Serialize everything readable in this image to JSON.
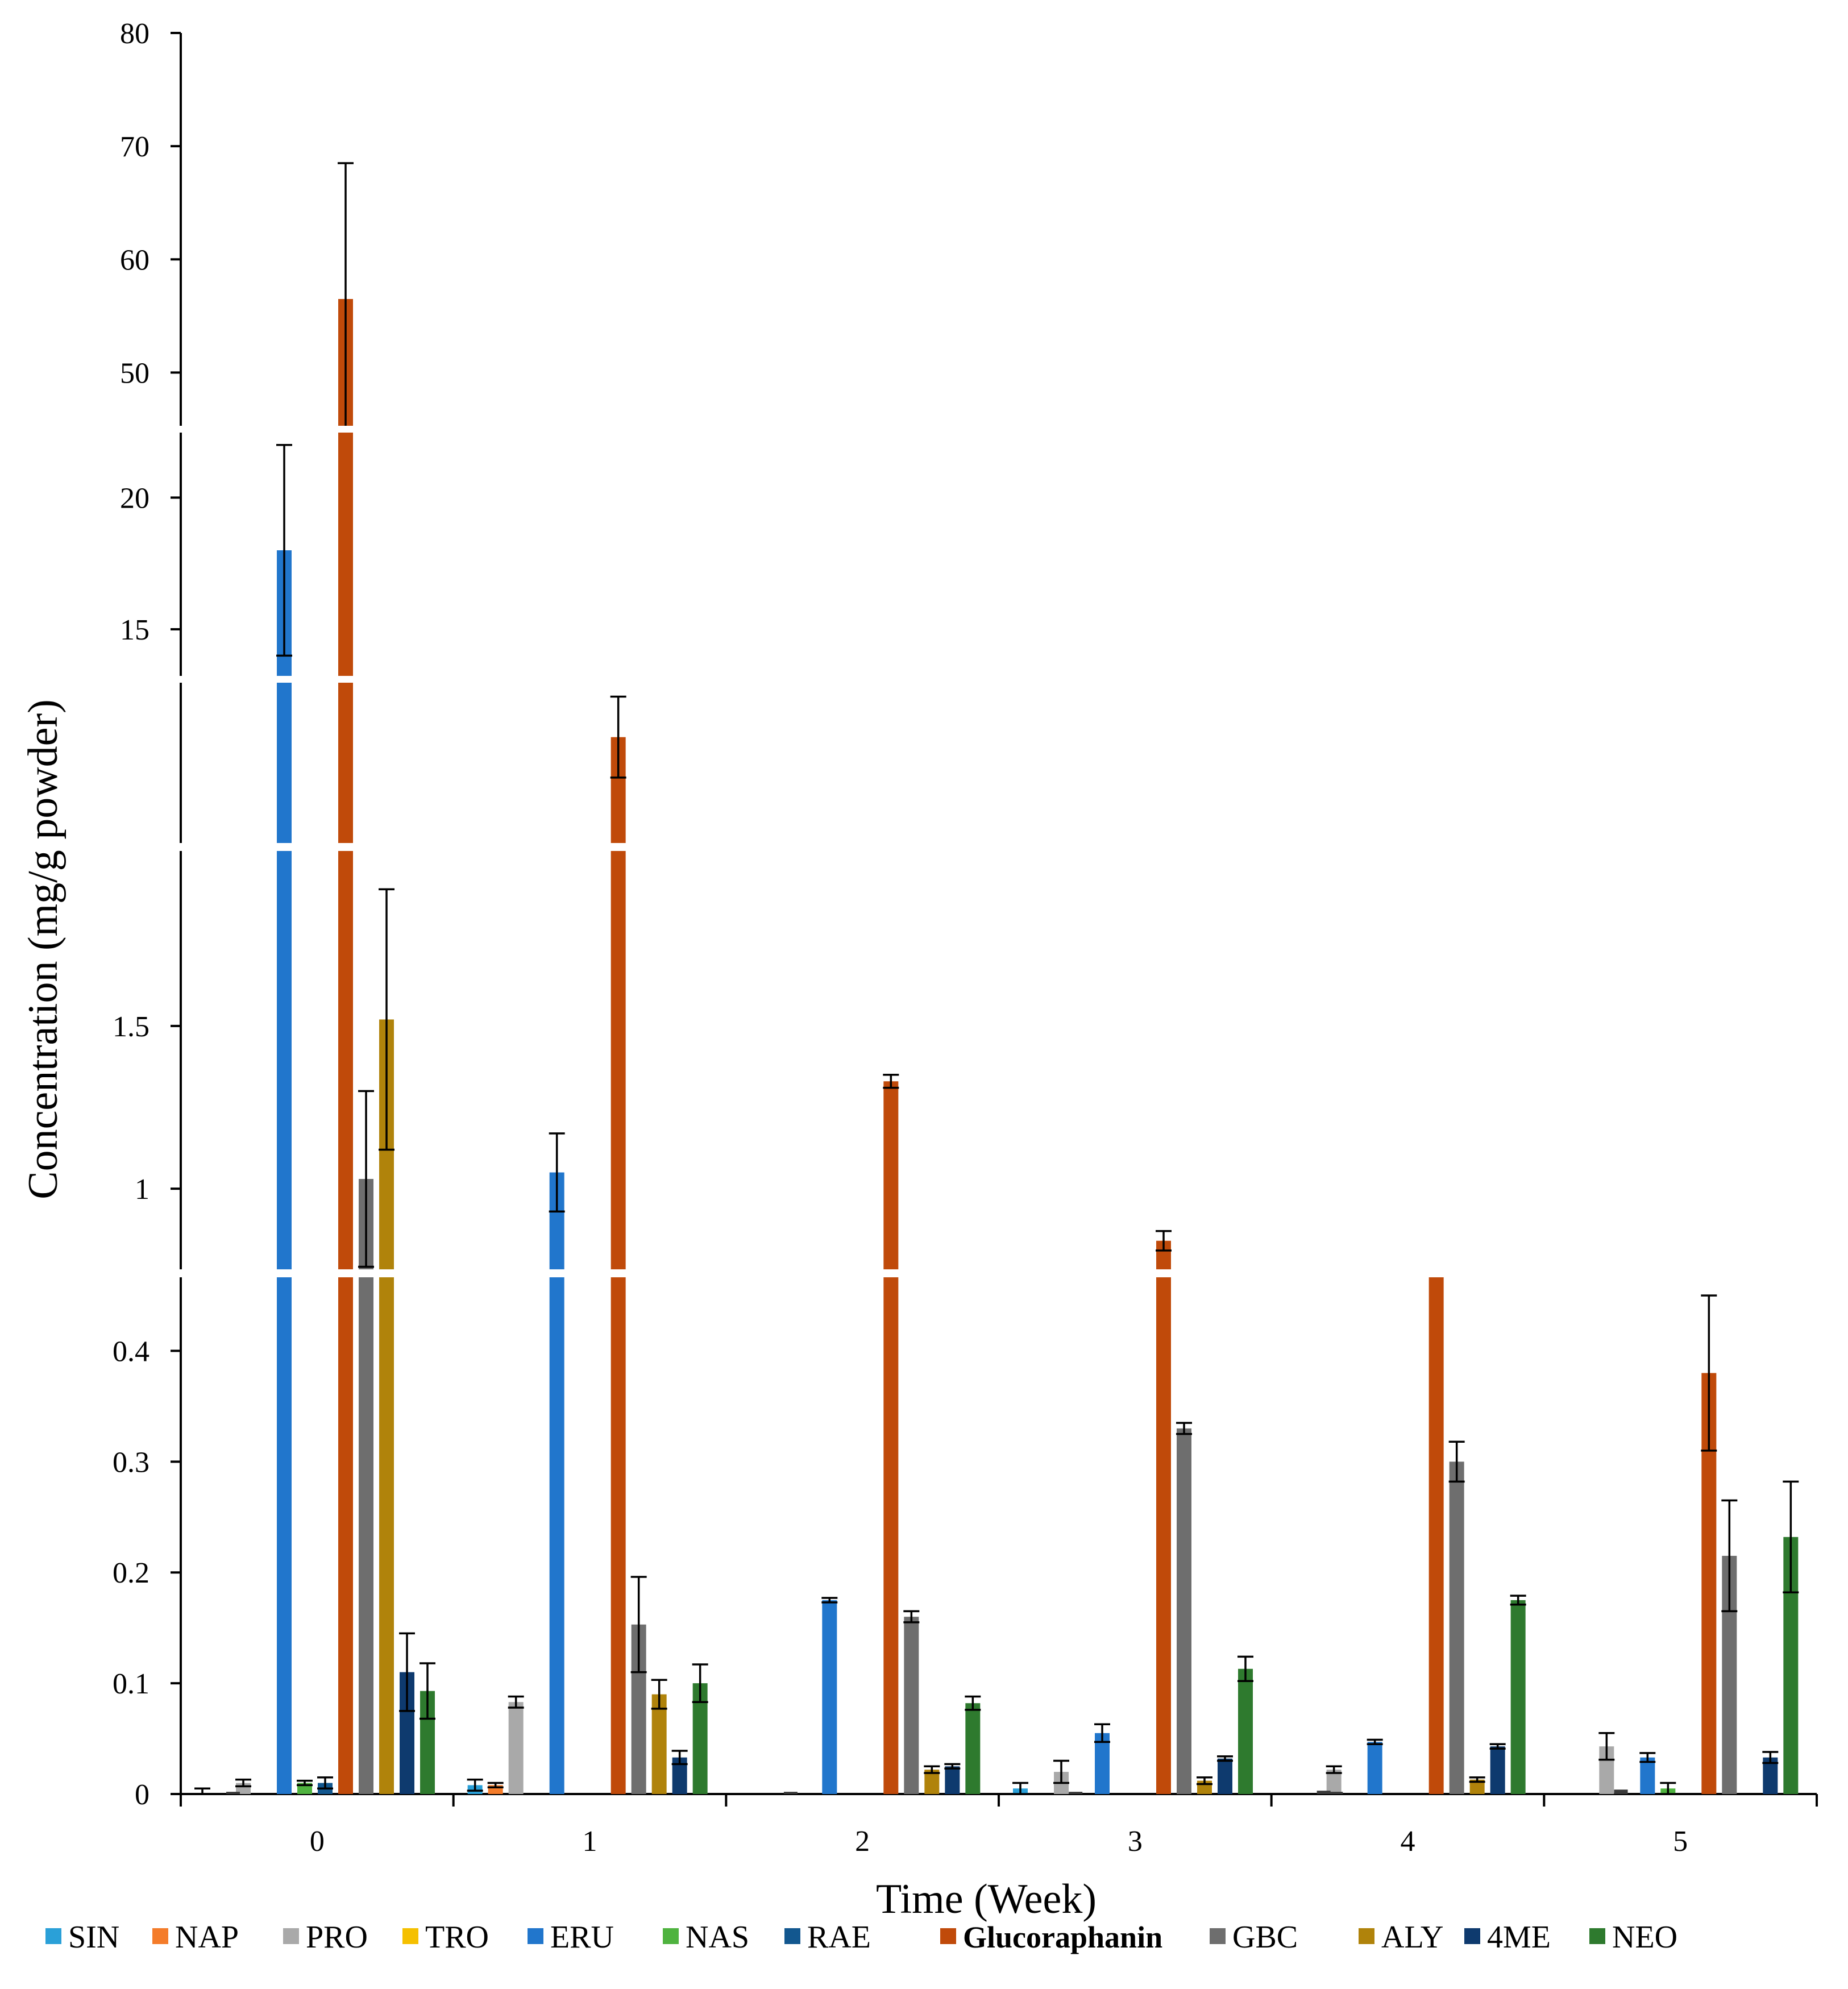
{
  "chart_data": {
    "type": "bar",
    "xlabel": "Time (Week)",
    "ylabel": "Concentration (mg/g powder)",
    "categories": [
      "0",
      "1",
      "2",
      "3",
      "4",
      "5"
    ],
    "axis_breaks": true,
    "y_segments": [
      {
        "range": [
          0,
          0.47
        ],
        "ticks": [
          0,
          0.1,
          0.2,
          0.3,
          0.4
        ],
        "tick_labels": [
          "0",
          "0.1",
          "0.2",
          "0.3",
          "0.4"
        ]
      },
      {
        "range": [
          0.74,
          2.05
        ],
        "ticks": [
          1,
          1.5
        ],
        "tick_labels": [
          "1",
          "1.5"
        ]
      },
      {
        "range": [
          2.05,
          3.5
        ],
        "ticks": [],
        "tick_labels": []
      },
      {
        "range": [
          13.1,
          22.6
        ],
        "ticks": [
          15,
          20
        ],
        "tick_labels": [
          "15",
          "20"
        ]
      },
      {
        "range": [
          45,
          80
        ],
        "ticks": [
          50,
          60,
          70,
          80
        ],
        "tick_labels": [
          "50",
          "60",
          "70",
          "80"
        ]
      }
    ],
    "series": [
      {
        "name": "SIN",
        "color": "#2aa0d8",
        "values": [
          0,
          0.008,
          0,
          0.005,
          0,
          0
        ],
        "errors": [
          0.005,
          0.005,
          0,
          0.005,
          0,
          0
        ]
      },
      {
        "name": "NAP",
        "color": "#f47c2a",
        "values": [
          0,
          0.008,
          0,
          0,
          0,
          0
        ],
        "errors": [
          0,
          0.002,
          0,
          0,
          0,
          0
        ]
      },
      {
        "name": "PRO",
        "color": "#a9a9a9",
        "values": [
          0.01,
          0.083,
          0,
          0.02,
          0.022,
          0.043
        ],
        "errors": [
          0.003,
          0.005,
          0,
          0.01,
          0.003,
          0.012
        ]
      },
      {
        "name": "TRO",
        "color": "#f5c000",
        "values": [
          0,
          0,
          0,
          0,
          0,
          0
        ],
        "errors": [
          0,
          0,
          0,
          0,
          0,
          0
        ]
      },
      {
        "name": "ERU",
        "color": "#2176cc",
        "values": [
          18,
          1.05,
          0.175,
          0.055,
          0.047,
          0.033
        ],
        "errors": [
          4,
          0.12,
          0.002,
          0.008,
          0.002,
          0.004
        ]
      },
      {
        "name": "NAS",
        "color": "#4fb33f",
        "values": [
          0.01,
          0,
          0,
          0,
          0,
          0.005
        ],
        "errors": [
          0.002,
          0,
          0,
          0,
          0,
          0.005
        ]
      },
      {
        "name": "RAE",
        "color": "#12578f",
        "values": [
          0.01,
          0,
          0,
          0,
          0,
          0
        ],
        "errors": [
          0.005,
          0,
          0,
          0,
          0,
          0
        ]
      },
      {
        "name": "Glucoraphanin",
        "color": "#c04a0a",
        "values": [
          56.5,
          3.0,
          1.33,
          0.84,
          0.73,
          0.38
        ],
        "errors": [
          12,
          0.35,
          0.02,
          0.03,
          0.005,
          0.07
        ]
      },
      {
        "name": "GBC",
        "color": "#6e6e6e",
        "values": [
          1.03,
          0.153,
          0.16,
          0.33,
          0.3,
          0.215
        ],
        "errors": [
          0.27,
          0.043,
          0.005,
          0.005,
          0.018,
          0.05
        ]
      },
      {
        "name": "ALY",
        "color": "#b0830b",
        "values": [
          1.52,
          0.09,
          0.022,
          0.012,
          0.013,
          0
        ],
        "errors": [
          0.4,
          0.013,
          0.003,
          0.003,
          0.002,
          0
        ]
      },
      {
        "name": "4ME",
        "color": "#0e3a6e",
        "values": [
          0.11,
          0.033,
          0.025,
          0.032,
          0.043,
          0.033
        ],
        "errors": [
          0.035,
          0.006,
          0.002,
          0.002,
          0.002,
          0.005
        ]
      },
      {
        "name": "NEO",
        "color": "#2e7a2e",
        "values": [
          0.093,
          0.1,
          0.082,
          0.113,
          0.175,
          0.232
        ],
        "errors": [
          0.025,
          0.017,
          0.006,
          0.011,
          0.004,
          0.05
        ]
      }
    ],
    "extra_small_bars": [
      {
        "category": "0",
        "value": 0.002
      },
      {
        "category": "2",
        "value": 0.002
      },
      {
        "category": "3",
        "value": 0.002
      },
      {
        "category": "4",
        "value": 0.003
      },
      {
        "category": "4",
        "value": 0.002
      },
      {
        "category": "5",
        "value": 0.004
      }
    ]
  }
}
